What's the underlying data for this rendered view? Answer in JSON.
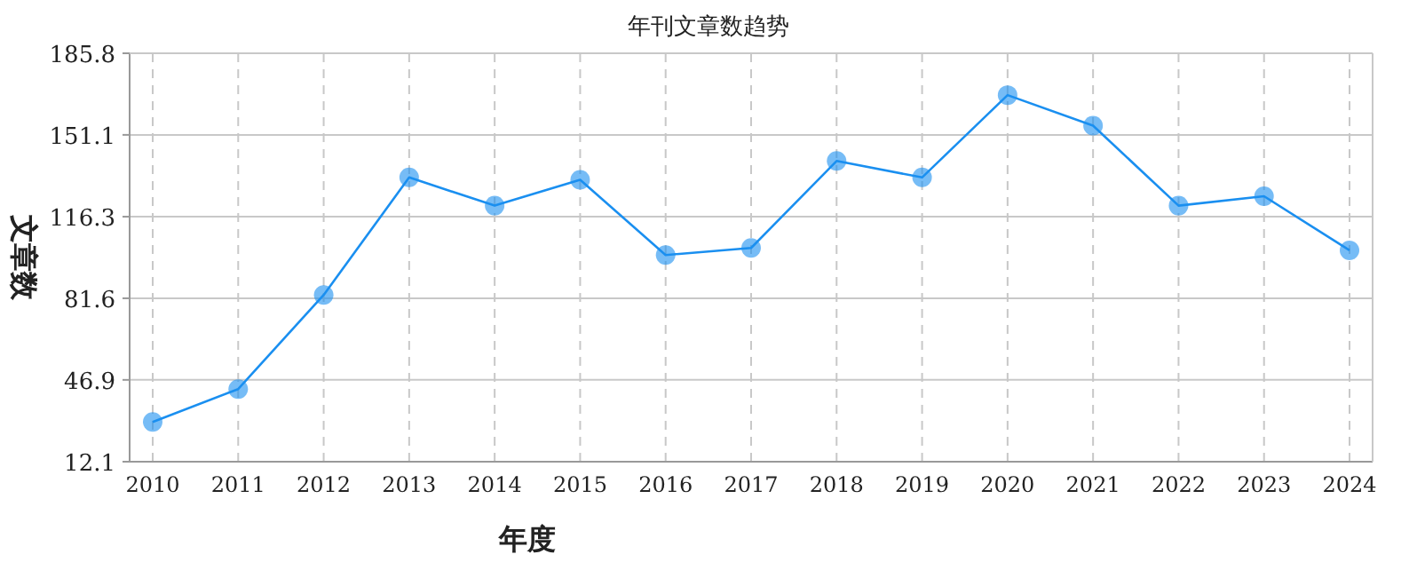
{
  "chart_data": {
    "type": "line",
    "title": "年刊文章数趋势",
    "xlabel": "年度",
    "ylabel": "文章数",
    "categories": [
      "2010",
      "2011",
      "2012",
      "2013",
      "2014",
      "2015",
      "2016",
      "2017",
      "2018",
      "2019",
      "2020",
      "2021",
      "2022",
      "2023",
      "2024"
    ],
    "series": [
      {
        "color": "#1a8ff0",
        "values": [
          29,
          43,
          83,
          133,
          121,
          132,
          100,
          103,
          140,
          133,
          168,
          155,
          121,
          125,
          102
        ]
      }
    ],
    "ylim": [
      12.1,
      185.8
    ],
    "yticks": [
      12.1,
      46.9,
      81.6,
      116.3,
      151.1,
      185.8
    ],
    "grid": true,
    "marker": "circle"
  }
}
